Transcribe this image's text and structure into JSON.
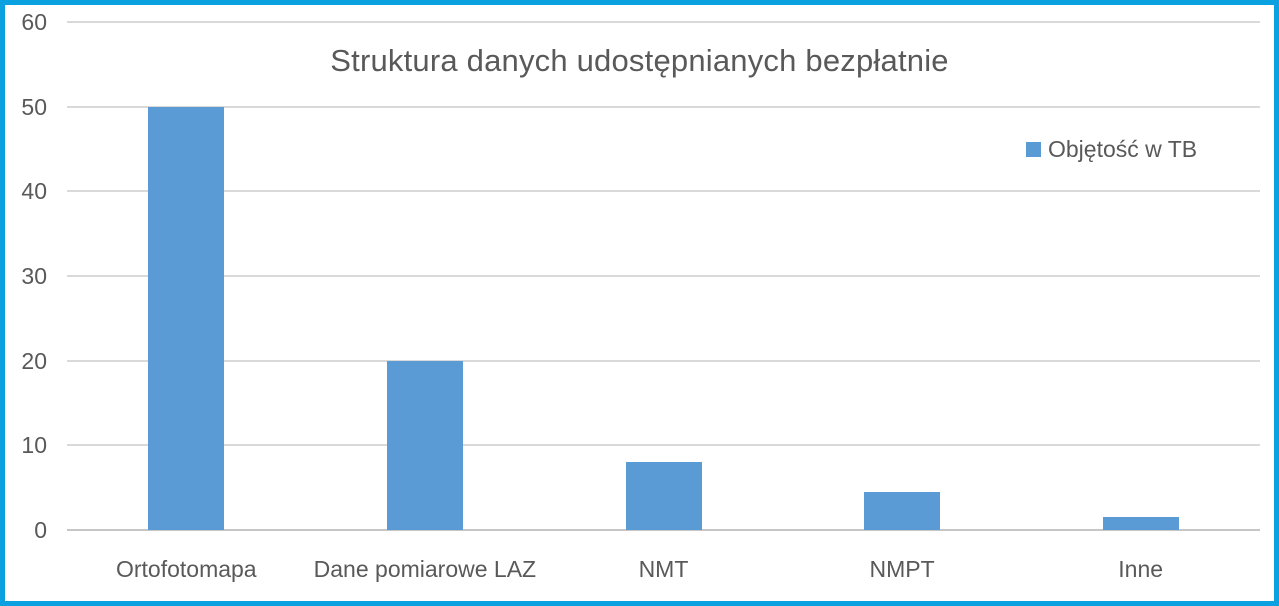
{
  "frame": {
    "border_color": "#0aa1e0",
    "background_color": "#ffffff"
  },
  "chart_data": {
    "type": "bar",
    "title": "Struktura danych udostępnianych bezpłatnie",
    "categories": [
      "Ortofotomapa",
      "Dane pomiarowe LAZ",
      "NMT",
      "NMPT",
      "Inne"
    ],
    "series": [
      {
        "name": "Objętość w TB",
        "values": [
          50,
          20,
          8,
          4.5,
          1.5
        ]
      }
    ],
    "xlabel": "",
    "ylabel": "",
    "ylim": [
      0,
      60
    ],
    "yticks": [
      0,
      10,
      20,
      30,
      40,
      50,
      60
    ],
    "grid": true,
    "legend_position": "upper-right",
    "bar_color": "#5b9bd5",
    "gridline_color": "#d9d9d9",
    "axis_line_color": "#c6c6c6",
    "text_color": "#595959"
  }
}
